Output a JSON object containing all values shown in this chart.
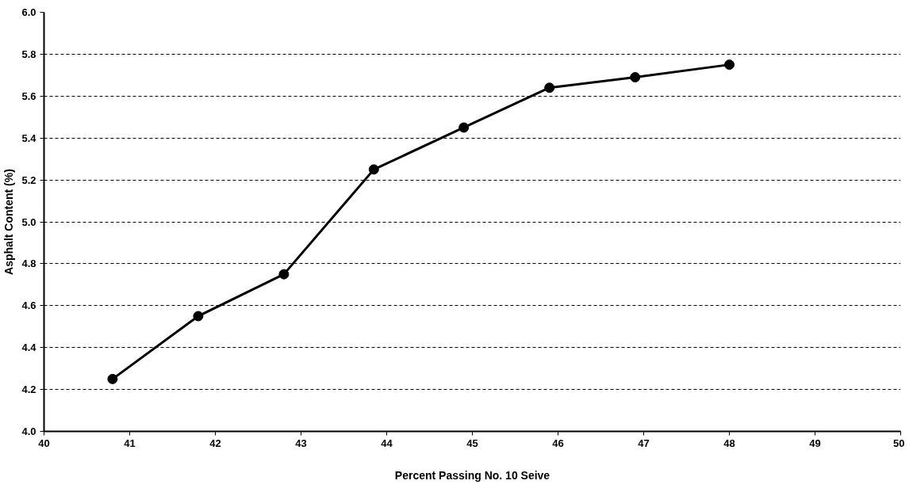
{
  "chart_data": {
    "type": "line",
    "xlabel": "Percent Passing No. 10 Seive",
    "ylabel": "Asphalt Content (%)",
    "series": [
      {
        "color": "#000000",
        "x": [
          40.8,
          41.8,
          42.8,
          43.85,
          44.9,
          45.9,
          46.9,
          48.0
        ],
        "values": [
          4.25,
          4.55,
          4.75,
          5.25,
          5.45,
          5.64,
          5.69,
          5.75
        ]
      }
    ],
    "xlim": [
      40,
      50
    ],
    "xticks": [
      40,
      41,
      42,
      43,
      44,
      45,
      46,
      47,
      48,
      49,
      50
    ],
    "ylim": [
      4.0,
      6.0
    ],
    "yticks": [
      {
        "value": 4.0,
        "label": "4.0"
      },
      {
        "value": 4.2,
        "label": "4.2"
      },
      {
        "value": 4.4,
        "label": "4.4"
      },
      {
        "value": 4.6,
        "label": "4.6"
      },
      {
        "value": 4.8,
        "label": "4.8"
      },
      {
        "value": 5.0,
        "label": "5.0"
      },
      {
        "value": 5.2,
        "label": "5.2"
      },
      {
        "value": 5.4,
        "label": "5.4"
      },
      {
        "value": 5.6,
        "label": "5.6"
      },
      {
        "value": 5.8,
        "label": "5.8"
      },
      {
        "value": 6.0,
        "label": "6.0"
      }
    ],
    "grid": "y",
    "marker": "circle",
    "line_style": "solid"
  }
}
